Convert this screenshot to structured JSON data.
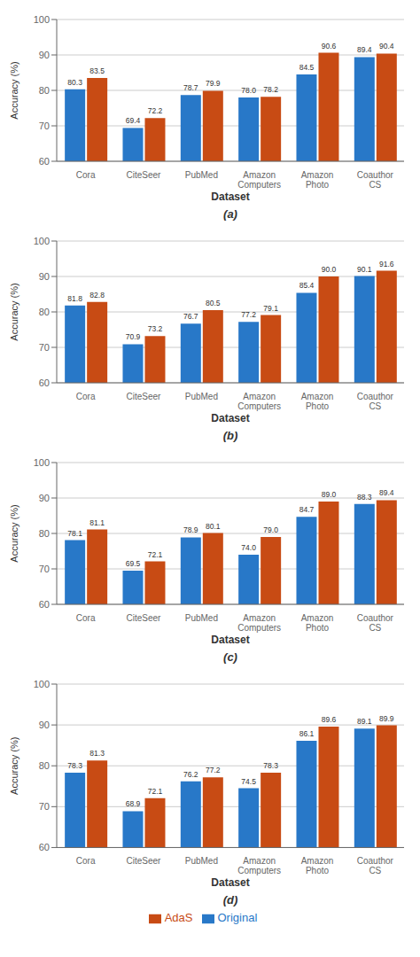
{
  "chart_data": [
    {
      "type": "bar",
      "title": "(a)",
      "xlabel": "Dataset",
      "ylabel": "Accuracy (%)",
      "categories": [
        "Cora",
        "CiteSeer",
        "PubMed",
        "Amazon\nComputers",
        "Amazon\nPhoto",
        "Coauthor\nCS"
      ],
      "series": [
        {
          "name": "Original",
          "color": "#2878C8",
          "values": [
            80.3,
            69.4,
            78.7,
            78.0,
            84.5,
            89.4
          ],
          "value_labels": [
            "80.3",
            "69.4",
            "78.7",
            "78.0",
            "84.5",
            "89.4"
          ]
        },
        {
          "name": "AdaS",
          "color": "#C84B14",
          "values": [
            83.5,
            72.2,
            79.9,
            78.2,
            90.6,
            90.4
          ],
          "value_labels": [
            "83.5",
            "72.2",
            "79.9",
            "78.2",
            "90.6",
            "90.4"
          ]
        }
      ],
      "ylim": [
        60,
        100
      ],
      "yticks": [
        60,
        70,
        80,
        90,
        100
      ],
      "grid": true,
      "data_labels": true
    },
    {
      "type": "bar",
      "title": "(b)",
      "xlabel": "Dataset",
      "ylabel": "Accuracy (%)",
      "categories": [
        "Cora",
        "CiteSeer",
        "PubMed",
        "Amazon\nComputers",
        "Amazon\nPhoto",
        "Coauthor\nCS"
      ],
      "series": [
        {
          "name": "Original",
          "color": "#2878C8",
          "values": [
            81.8,
            70.9,
            76.7,
            77.2,
            85.4,
            90.1
          ],
          "value_labels": [
            "81.8",
            "70.9",
            "76.7",
            "77.2",
            "85.4",
            "90.1"
          ]
        },
        {
          "name": "AdaS",
          "color": "#C84B14",
          "values": [
            82.8,
            73.2,
            80.5,
            79.1,
            90.0,
            91.6
          ],
          "value_labels": [
            "82.8",
            "73.2",
            "80.5",
            "79.1",
            "90.0",
            "91.6"
          ]
        }
      ],
      "ylim": [
        60,
        100
      ],
      "yticks": [
        60,
        70,
        80,
        90,
        100
      ],
      "grid": true,
      "data_labels": true
    },
    {
      "type": "bar",
      "title": "(c)",
      "xlabel": "Dataset",
      "ylabel": "Accuracy (%)",
      "categories": [
        "Cora",
        "CiteSeer",
        "PubMed",
        "Amazon\nComputers",
        "Amazon\nPhoto",
        "Coauthor\nCS"
      ],
      "series": [
        {
          "name": "Original",
          "color": "#2878C8",
          "values": [
            78.1,
            69.5,
            78.9,
            74.0,
            84.7,
            88.3
          ],
          "value_labels": [
            "78.1",
            "69.5",
            "78.9",
            "74.0",
            "84.7",
            "88.3"
          ]
        },
        {
          "name": "AdaS",
          "color": "#C84B14",
          "values": [
            81.1,
            72.1,
            80.1,
            79.0,
            89.0,
            89.4
          ],
          "value_labels": [
            "81.1",
            "72.1",
            "80.1",
            "79.0",
            "89.0",
            "89.4"
          ]
        }
      ],
      "ylim": [
        60,
        100
      ],
      "yticks": [
        60,
        70,
        80,
        90,
        100
      ],
      "grid": true,
      "data_labels": true
    },
    {
      "type": "bar",
      "title": "(d)",
      "xlabel": "Dataset",
      "ylabel": "Accuracy (%)",
      "categories": [
        "Cora",
        "CiteSeer",
        "PubMed",
        "Amazon\nComputers",
        "Amazon\nPhoto",
        "Coauthor\nCS"
      ],
      "series": [
        {
          "name": "Original",
          "color": "#2878C8",
          "values": [
            78.3,
            68.9,
            76.2,
            74.5,
            86.1,
            89.1
          ],
          "value_labels": [
            "78.3",
            "68.9",
            "76.2",
            "74.5",
            "86.1",
            "89.1"
          ]
        },
        {
          "name": "AdaS",
          "color": "#C84B14",
          "values": [
            81.3,
            72.1,
            77.2,
            78.3,
            89.6,
            89.9
          ],
          "value_labels": [
            "81.3",
            "72.1",
            "77.2",
            "78.3",
            "89.6",
            "89.9"
          ]
        }
      ],
      "ylim": [
        60,
        100
      ],
      "yticks": [
        60,
        70,
        80,
        90,
        100
      ],
      "grid": true,
      "data_labels": true,
      "legend": "bottom"
    }
  ]
}
